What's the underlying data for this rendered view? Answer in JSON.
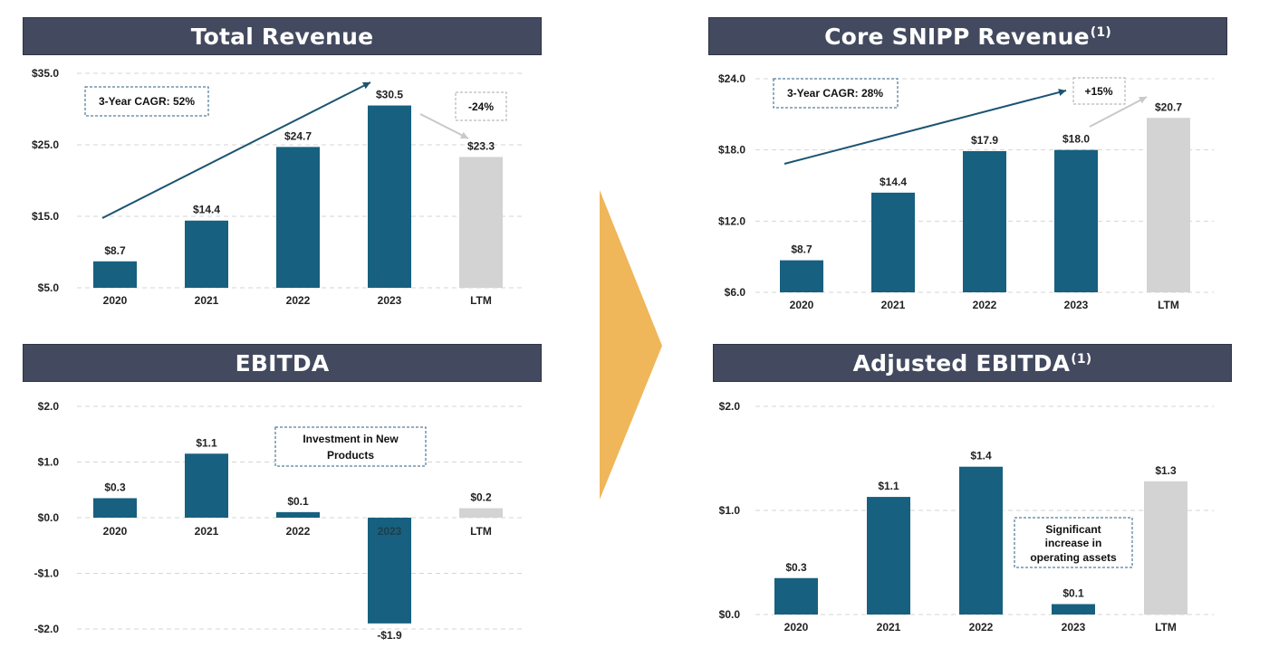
{
  "colors": {
    "bar": "#17607f",
    "ltm": "#d3d3d3",
    "banner": "#434a5f",
    "chevron": "#efb65a",
    "arrow": "#1c5472",
    "grey_arrow": "#c9c9c9"
  },
  "titles": {
    "total_revenue": "Total Revenue",
    "core_revenue": "Core SNIPP Revenue",
    "core_revenue_sup": "(1)",
    "ebitda": "EBITDA",
    "adjusted_ebitda": "Adjusted EBITDA",
    "adjusted_ebitda_sup": "(1)"
  },
  "chart_data": [
    {
      "id": "total_revenue",
      "type": "bar",
      "categories": [
        "2020",
        "2021",
        "2022",
        "2023",
        "LTM"
      ],
      "values": [
        8.7,
        14.4,
        24.7,
        30.5,
        23.3
      ],
      "value_labels": [
        "$8.7",
        "$14.4",
        "$24.7",
        "$30.5",
        "$23.3"
      ],
      "yticks": [
        5.0,
        15.0,
        25.0,
        35.0
      ],
      "ytick_labels": [
        "$5.0",
        "$15.0",
        "$25.0",
        "$35.0"
      ],
      "ylim": [
        5.0,
        35.0
      ],
      "grid": true,
      "annotations": [
        "3-Year CAGR: 52%",
        "-24%"
      ]
    },
    {
      "id": "core_revenue",
      "type": "bar",
      "categories": [
        "2020",
        "2021",
        "2022",
        "2023",
        "LTM"
      ],
      "values": [
        8.7,
        14.4,
        17.9,
        18.0,
        20.7
      ],
      "value_labels": [
        "$8.7",
        "$14.4",
        "$17.9",
        "$18.0",
        "$20.7"
      ],
      "yticks": [
        6.0,
        12.0,
        18.0,
        24.0
      ],
      "ytick_labels": [
        "$6.0",
        "$12.0",
        "$18.0",
        "$24.0"
      ],
      "ylim": [
        6.0,
        24.0
      ],
      "grid": true,
      "annotations": [
        "3-Year CAGR: 28%",
        "+15%"
      ]
    },
    {
      "id": "ebitda",
      "type": "bar",
      "categories": [
        "2020",
        "2021",
        "2022",
        "2023",
        "LTM"
      ],
      "values": [
        0.35,
        1.15,
        0.1,
        -1.9,
        0.17
      ],
      "value_labels": [
        "$0.3",
        "$1.1",
        "$0.1",
        "-$1.9",
        "$0.2"
      ],
      "yticks": [
        -2.0,
        -1.0,
        0.0,
        1.0,
        2.0
      ],
      "ytick_labels": [
        "-$2.0",
        "-$1.0",
        "$0.0",
        "$1.0",
        "$2.0"
      ],
      "ylim": [
        -2.0,
        2.0
      ],
      "grid": true,
      "annotations": [
        "Investment in New",
        "Products"
      ]
    },
    {
      "id": "adjusted_ebitda",
      "type": "bar",
      "categories": [
        "2020",
        "2021",
        "2022",
        "2023",
        "LTM"
      ],
      "values": [
        0.35,
        1.13,
        1.42,
        0.1,
        1.28
      ],
      "value_labels": [
        "$0.3",
        "$1.1",
        "$1.4",
        "$0.1",
        "$1.3"
      ],
      "yticks": [
        0.0,
        1.0,
        2.0
      ],
      "ytick_labels": [
        "$0.0",
        "$1.0",
        "$2.0"
      ],
      "ylim": [
        0.0,
        2.0
      ],
      "grid": true,
      "annotations": [
        "Significant",
        "increase in",
        "operating assets"
      ]
    }
  ]
}
